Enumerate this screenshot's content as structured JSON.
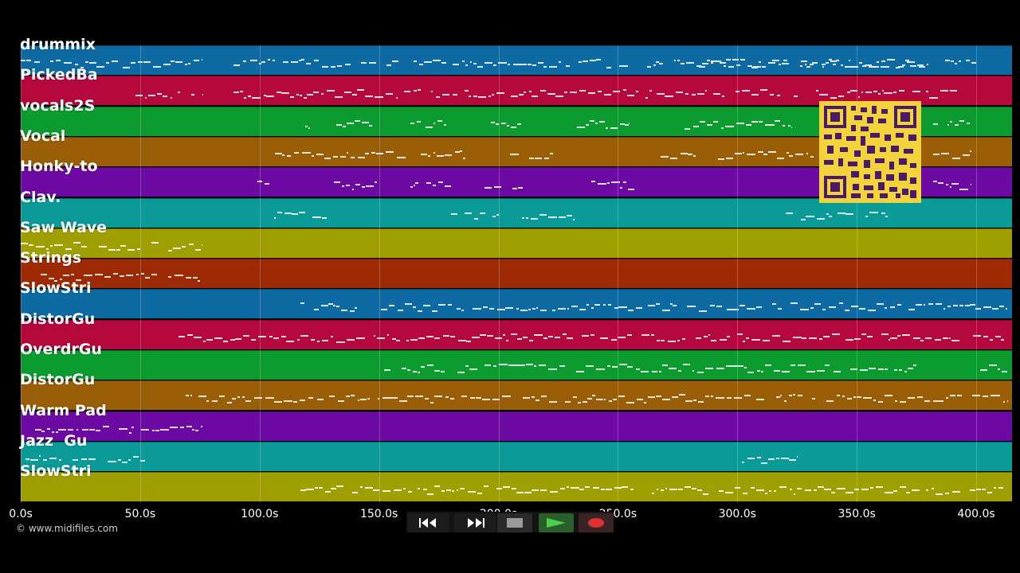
{
  "tracks": [
    {
      "label": "drummix",
      "color": "#0e6aa3"
    },
    {
      "label": "PickedBa",
      "color": "#b5083c"
    },
    {
      "label": "vocals2S",
      "color": "#0b9b2e"
    },
    {
      "label": "Vocal",
      "color": "#9a5e06"
    },
    {
      "label": "Honky-to",
      "color": "#6d0aa3"
    },
    {
      "label": "Clav.",
      "color": "#0a9a98"
    },
    {
      "label": "Saw Wave",
      "color": "#9f9f00"
    },
    {
      "label": "Strings",
      "color": "#9e2a03"
    },
    {
      "label": "SlowStri",
      "color": "#0e6aa3"
    },
    {
      "label": "DistorGu",
      "color": "#b5083c"
    },
    {
      "label": "OverdrGu",
      "color": "#0b9b2e"
    },
    {
      "label": "DistorGu",
      "color": "#9a5e06"
    },
    {
      "label": "Warm Pad",
      "color": "#6d0aa3"
    },
    {
      "label": "Jazz  Gu",
      "color": "#0a9a98"
    },
    {
      "label": "SlowStri",
      "color": "#9f9f00"
    }
  ],
  "timeline": {
    "max_seconds": 415,
    "ticks": [
      "0.0s",
      "50.0s",
      "100.0s",
      "150.0s",
      "200.0s",
      "250.0s",
      "300.0s",
      "350.0s",
      "400.0s"
    ],
    "tick_values": [
      0,
      50,
      100,
      150,
      200,
      250,
      300,
      350,
      400
    ]
  },
  "copyright": "© www.midifiles.com",
  "controls": {
    "rewind_icon": "rewind-icon",
    "fastforward_icon": "fast-forward-icon",
    "stop_icon": "stop-icon",
    "play_icon": "play-icon",
    "record_icon": "record-icon"
  },
  "note_segments": [
    {
      "track": 0,
      "start": 0,
      "end": 76
    },
    {
      "track": 0,
      "start": 89,
      "end": 400
    },
    {
      "track": 0,
      "start": 284,
      "end": 380
    },
    {
      "track": 1,
      "start": 48,
      "end": 76
    },
    {
      "track": 1,
      "start": 89,
      "end": 400
    },
    {
      "track": 2,
      "start": 119,
      "end": 121
    },
    {
      "track": 2,
      "start": 132,
      "end": 147
    },
    {
      "track": 2,
      "start": 163,
      "end": 178
    },
    {
      "track": 2,
      "start": 195,
      "end": 210
    },
    {
      "track": 2,
      "start": 233,
      "end": 255
    },
    {
      "track": 2,
      "start": 278,
      "end": 323
    },
    {
      "track": 2,
      "start": 382,
      "end": 398
    },
    {
      "track": 3,
      "start": 103,
      "end": 186
    },
    {
      "track": 3,
      "start": 202,
      "end": 223
    },
    {
      "track": 3,
      "start": 268,
      "end": 332
    },
    {
      "track": 3,
      "start": 382,
      "end": 398
    },
    {
      "track": 4,
      "start": 99,
      "end": 104
    },
    {
      "track": 4,
      "start": 131,
      "end": 149
    },
    {
      "track": 4,
      "start": 163,
      "end": 180
    },
    {
      "track": 4,
      "start": 194,
      "end": 211
    },
    {
      "track": 4,
      "start": 239,
      "end": 257
    },
    {
      "track": 4,
      "start": 382,
      "end": 398
    },
    {
      "track": 5,
      "start": 103,
      "end": 128
    },
    {
      "track": 5,
      "start": 180,
      "end": 200
    },
    {
      "track": 5,
      "start": 210,
      "end": 232
    },
    {
      "track": 5,
      "start": 266,
      "end": 268
    },
    {
      "track": 5,
      "start": 317,
      "end": 363
    },
    {
      "track": 6,
      "start": 0,
      "end": 76
    },
    {
      "track": 7,
      "start": 5,
      "end": 76
    },
    {
      "track": 8,
      "start": 117,
      "end": 413
    },
    {
      "track": 9,
      "start": 66,
      "end": 413
    },
    {
      "track": 10,
      "start": 152,
      "end": 375
    },
    {
      "track": 10,
      "start": 398,
      "end": 413
    },
    {
      "track": 11,
      "start": 66,
      "end": 413
    },
    {
      "track": 12,
      "start": 2,
      "end": 76
    },
    {
      "track": 13,
      "start": 2,
      "end": 52
    },
    {
      "track": 13,
      "start": 298,
      "end": 325
    },
    {
      "track": 14,
      "start": 117,
      "end": 413
    }
  ]
}
